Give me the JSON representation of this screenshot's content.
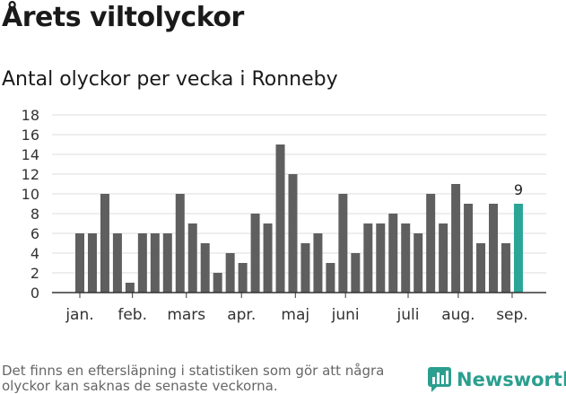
{
  "header": {
    "title": "Årets viltolyckor",
    "subtitle": "Antal olyckor per vecka i Ronneby"
  },
  "chart_data": {
    "type": "bar",
    "title": "Årets viltolyckor",
    "subtitle": "Antal olyckor per vecka i Ronneby",
    "xlabel": "",
    "ylabel": "",
    "ylim": [
      0,
      18
    ],
    "yticks": [
      "0",
      "2",
      "4",
      "6",
      "8",
      "10",
      "12",
      "14",
      "16",
      "18"
    ],
    "grid": true,
    "month_labels": [
      "jan.",
      "feb.",
      "mars",
      "apr.",
      "maj",
      "juni",
      "juli",
      "aug.",
      "sep."
    ],
    "values": [
      6,
      6,
      10,
      6,
      1,
      6,
      6,
      6,
      10,
      7,
      5,
      2,
      4,
      3,
      8,
      7,
      15,
      12,
      5,
      6,
      3,
      10,
      4,
      7,
      7,
      8,
      7,
      6,
      10,
      7,
      11,
      9,
      5,
      9,
      5,
      9
    ],
    "highlight_label": "9",
    "colors": {
      "bar": "#5f5f5f",
      "highlight": "#2aa596",
      "grid": "#dddddd",
      "axis": "#333333"
    }
  },
  "footer": {
    "note": "Det finns en eftersläpning i statistiken som gör att några olyckor kan saknas de senaste veckorna.",
    "brand": "Newsworthy",
    "brand_icon": "newsworthy-logo-icon"
  }
}
